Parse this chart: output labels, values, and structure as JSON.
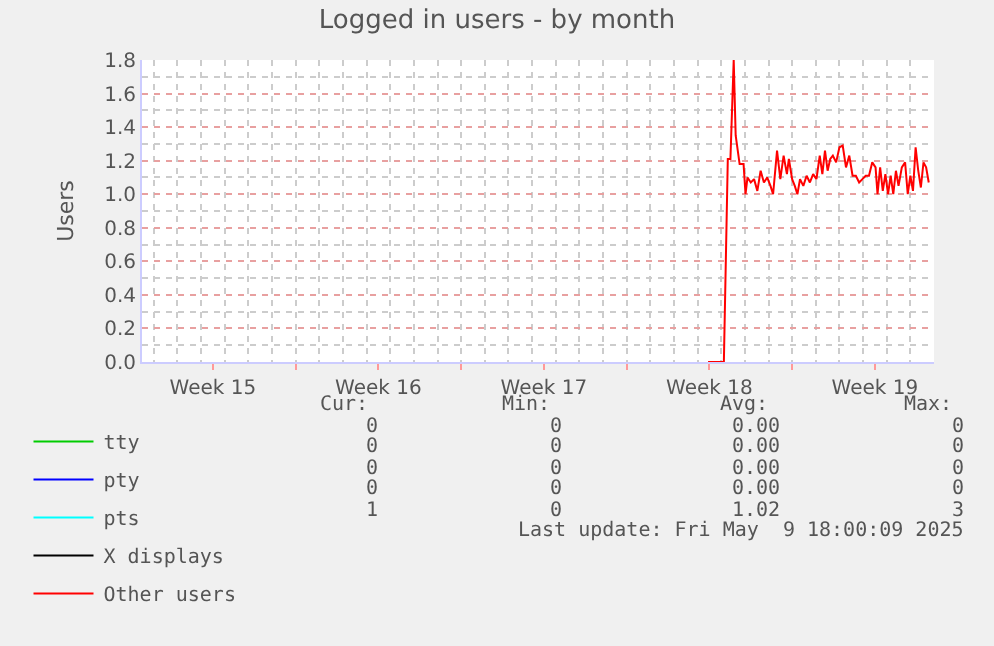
{
  "chart_data": {
    "type": "line",
    "title": "Logged in users - by month",
    "ylabel": "Users",
    "xlim": [
      "2025-04-07T12:00",
      "2025-05-11T00:00"
    ],
    "xticks": [
      {
        "value": "2025-04-10T12:00",
        "label": "Week 15"
      },
      {
        "value": "2025-04-14",
        "label": null
      },
      {
        "value": "2025-04-17T12:00",
        "label": "Week 16"
      },
      {
        "value": "2025-04-21",
        "label": null
      },
      {
        "value": "2025-04-24T12:00",
        "label": "Week 17"
      },
      {
        "value": "2025-04-28",
        "label": null
      },
      {
        "value": "2025-05-01T12:00",
        "label": "Week 18"
      },
      {
        "value": "2025-05-05",
        "label": null
      },
      {
        "value": "2025-05-08T12:00",
        "label": "Week 19"
      }
    ],
    "ylim": [
      0,
      1.8
    ],
    "yticks": [
      {
        "value": 0,
        "label": "0.0"
      },
      {
        "value": 0.2,
        "label": "0.2"
      },
      {
        "value": 0.4,
        "label": "0.4"
      },
      {
        "value": 0.6,
        "label": "0.6"
      },
      {
        "value": 0.8,
        "label": "0.8"
      },
      {
        "value": 1,
        "label": "1.0"
      },
      {
        "value": 1.2,
        "label": "1.2"
      },
      {
        "value": 1.4,
        "label": "1.4"
      },
      {
        "value": 1.6,
        "label": "1.6"
      },
      {
        "value": 1.8,
        "label": "1.8"
      }
    ],
    "grid": true,
    "legend": "bottom left",
    "marker": "none",
    "line_style": "solid",
    "series": [
      {
        "name": "tty",
        "color": "#00cc00"
      },
      {
        "name": "pty",
        "color": "#0000ff"
      },
      {
        "name": "pts",
        "color": "#00ffff"
      },
      {
        "name": "X displays",
        "color": "#000000"
      },
      {
        "name": "Other users",
        "color": "#ff0000",
        "x": [
          "2025-05-01T10:40",
          "2025-05-02T02:00",
          "2025-05-02T02:40",
          "2025-05-02T06:40",
          "2025-05-02T09:20",
          "2025-05-02T12:40",
          "2025-05-02T14:40",
          "2025-05-02T18:40",
          "2025-05-02T22:40",
          "2025-05-03T00:40",
          "2025-05-03T02:40",
          "2025-05-03T06:00",
          "2025-05-03T09:20",
          "2025-05-03T12:40",
          "2025-05-03T16:00",
          "2025-05-03T19:20",
          "2025-05-03T22:40",
          "2025-05-04T02:00",
          "2025-05-04T04:40",
          "2025-05-04T08:40",
          "2025-05-04T12:00",
          "2025-05-04T15:20",
          "2025-05-04T18:40",
          "2025-05-04T20:40",
          "2025-05-05T00:00",
          "2025-05-05T02:40",
          "2025-05-05T05:20",
          "2025-05-05T08:00",
          "2025-05-05T11:20",
          "2025-05-05T14:40",
          "2025-05-05T18:00",
          "2025-05-05T21:20",
          "2025-05-06T00:40",
          "2025-05-06T04:00",
          "2025-05-06T06:40",
          "2025-05-06T09:20",
          "2025-05-06T12:00",
          "2025-05-06T14:40",
          "2025-05-06T17:20",
          "2025-05-06T20:40",
          "2025-05-07T00:00",
          "2025-05-07T03:20",
          "2025-05-07T06:40",
          "2025-05-07T10:00",
          "2025-05-07T13:20",
          "2025-05-07T16:40",
          "2025-05-07T20:00",
          "2025-05-07T23:20",
          "2025-05-08T02:40",
          "2025-05-08T06:00",
          "2025-05-08T09:20",
          "2025-05-08T12:40",
          "2025-05-08T14:40",
          "2025-05-08T17:20",
          "2025-05-08T20:00",
          "2025-05-08T22:40",
          "2025-05-09T01:20",
          "2025-05-09T04:00",
          "2025-05-09T06:40",
          "2025-05-09T09:20",
          "2025-05-09T12:00",
          "2025-05-09T15:20",
          "2025-05-09T18:40",
          "2025-05-09T21:20",
          "2025-05-10T00:00",
          "2025-05-10T02:40",
          "2025-05-10T05:20",
          "2025-05-10T08:00",
          "2025-05-10T10:40",
          "2025-05-10T13:20",
          "2025-05-10T16:00",
          "2025-05-10T18:40"
        ],
        "values": [
          0,
          0,
          0,
          1.21,
          1.21,
          1.8,
          1.35,
          1.18,
          1.18,
          1.0,
          1.1,
          1.07,
          1.09,
          1.02,
          1.14,
          1.07,
          1.1,
          1.05,
          1.0,
          1.26,
          1.09,
          1.23,
          1.12,
          1.21,
          1.09,
          1.05,
          1.0,
          1.09,
          1.05,
          1.11,
          1.07,
          1.12,
          1.09,
          1.23,
          1.12,
          1.26,
          1.14,
          1.21,
          1.23,
          1.19,
          1.28,
          1.29,
          1.16,
          1.23,
          1.11,
          1.11,
          1.07,
          1.09,
          1.11,
          1.11,
          1.19,
          1.16,
          1.0,
          1.16,
          1.02,
          1.12,
          1.0,
          1.11,
          1.0,
          1.14,
          1.05,
          1.16,
          1.19,
          1.0,
          1.11,
          1.02,
          1.28,
          1.14,
          1.04,
          1.19,
          1.16,
          1.07
        ]
      }
    ],
    "annotations": [
      "Cur:",
      "Min:",
      "Avg:",
      "Max:",
      "0",
      "0",
      "0.00",
      "0",
      "0",
      "0",
      "0.00",
      "0",
      "0",
      "0",
      "0.00",
      "0",
      "0",
      "0",
      "0.00",
      "0",
      "1",
      "0",
      "1.02",
      "3",
      "Last update: Fri May  9 18:00:09 2025"
    ]
  }
}
